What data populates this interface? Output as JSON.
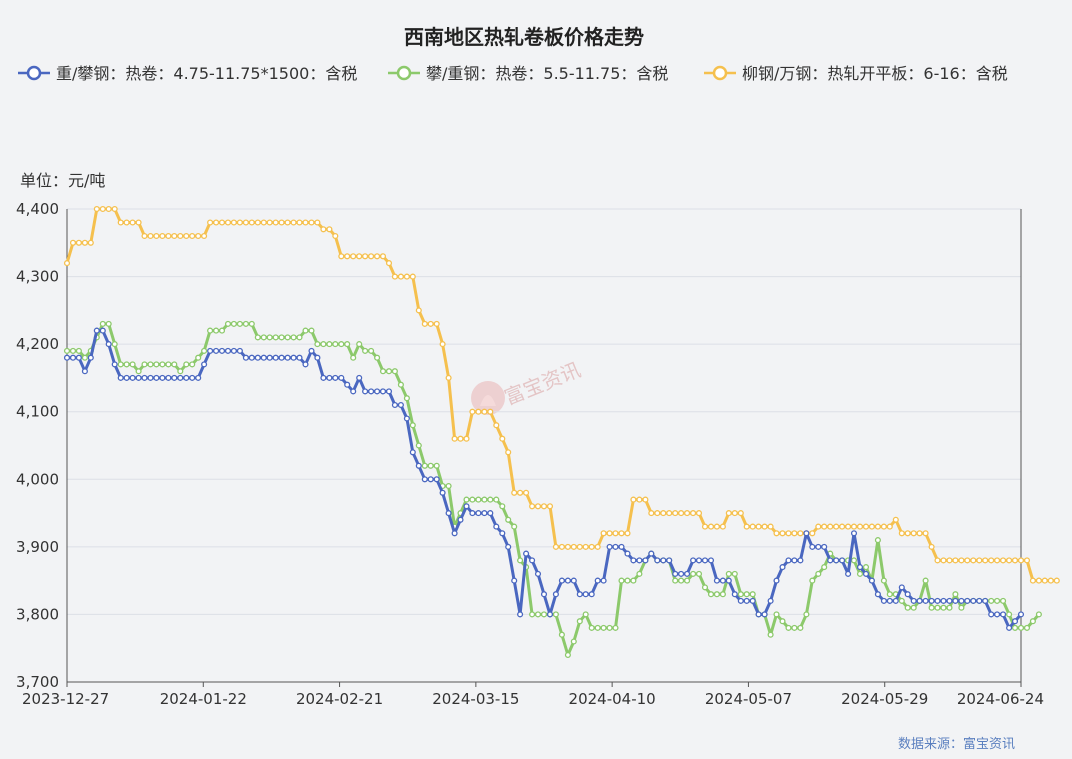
{
  "chart_data": {
    "type": "line",
    "title": "西南地区热轧卷板价格走势",
    "unit_label": "单位：元/吨",
    "source": "数据来源：富宝资讯",
    "watermark": "富宝资讯",
    "ylim": [
      3700,
      4400
    ],
    "yticks": [
      "4,400",
      "4,300",
      "4,200",
      "4,100",
      "4,000",
      "3,900",
      "3,800",
      "3,700"
    ],
    "xticks": [
      "2023-12-27",
      "2024-01-22",
      "2024-02-21",
      "2024-03-15",
      "2024-04-10",
      "2024-05-07",
      "2024-05-29",
      "2024-06-24"
    ],
    "grid": true,
    "legend_position": "top",
    "series": [
      {
        "name": "重/攀钢：热卷：4.75-11.75*1500：含税",
        "color": "#4a67c0",
        "values": [
          4180,
          4180,
          4180,
          4160,
          4180,
          4220,
          4220,
          4200,
          4170,
          4150,
          4150,
          4150,
          4150,
          4150,
          4150,
          4150,
          4150,
          4150,
          4150,
          4150,
          4150,
          4150,
          4150,
          4170,
          4190,
          4190,
          4190,
          4190,
          4190,
          4190,
          4180,
          4180,
          4180,
          4180,
          4180,
          4180,
          4180,
          4180,
          4180,
          4180,
          4170,
          4190,
          4180,
          4150,
          4150,
          4150,
          4150,
          4140,
          4130,
          4150,
          4130,
          4130,
          4130,
          4130,
          4130,
          4110,
          4110,
          4090,
          4040,
          4020,
          4000,
          4000,
          4000,
          3980,
          3950,
          3920,
          3940,
          3960,
          3950,
          3950,
          3950,
          3950,
          3930,
          3920,
          3900,
          3850,
          3800,
          3890,
          3880,
          3860,
          3830,
          3800,
          3830,
          3850,
          3850,
          3850,
          3830,
          3830,
          3830,
          3850,
          3850,
          3900,
          3900,
          3900,
          3890,
          3880,
          3880,
          3880,
          3890,
          3880,
          3880,
          3880,
          3860,
          3860,
          3860,
          3880,
          3880,
          3880,
          3880,
          3850,
          3850,
          3850,
          3830,
          3820,
          3820,
          3820,
          3800,
          3800,
          3820,
          3850,
          3870,
          3880,
          3880,
          3880,
          3920,
          3900,
          3900,
          3900,
          3880,
          3880,
          3880,
          3860,
          3920,
          3870,
          3860,
          3850,
          3830,
          3820,
          3820,
          3820,
          3840,
          3830,
          3820,
          3820,
          3820,
          3820,
          3820,
          3820,
          3820,
          3820,
          3820,
          3820,
          3820,
          3820,
          3820,
          3800,
          3800,
          3800,
          3780,
          3790,
          3800
        ]
      },
      {
        "name": "攀/重钢：热卷：5.5-11.75：含税",
        "color": "#8cc96b",
        "values": [
          4190,
          4190,
          4190,
          4180,
          4190,
          4210,
          4230,
          4230,
          4200,
          4170,
          4170,
          4170,
          4160,
          4170,
          4170,
          4170,
          4170,
          4170,
          4170,
          4160,
          4170,
          4170,
          4180,
          4190,
          4220,
          4220,
          4220,
          4230,
          4230,
          4230,
          4230,
          4230,
          4210,
          4210,
          4210,
          4210,
          4210,
          4210,
          4210,
          4210,
          4220,
          4220,
          4200,
          4200,
          4200,
          4200,
          4200,
          4200,
          4180,
          4200,
          4190,
          4190,
          4180,
          4160,
          4160,
          4160,
          4140,
          4120,
          4080,
          4050,
          4020,
          4020,
          4020,
          3990,
          3990,
          3930,
          3950,
          3970,
          3970,
          3970,
          3970,
          3970,
          3970,
          3960,
          3940,
          3930,
          3880,
          3870,
          3800,
          3800,
          3800,
          3800,
          3800,
          3770,
          3740,
          3760,
          3790,
          3800,
          3780,
          3780,
          3780,
          3780,
          3780,
          3850,
          3850,
          3850,
          3860,
          3880,
          3890,
          3880,
          3880,
          3880,
          3850,
          3850,
          3850,
          3860,
          3860,
          3840,
          3830,
          3830,
          3830,
          3860,
          3860,
          3830,
          3830,
          3830,
          3800,
          3800,
          3770,
          3800,
          3790,
          3780,
          3780,
          3780,
          3800,
          3850,
          3860,
          3870,
          3890,
          3880,
          3880,
          3880,
          3880,
          3860,
          3870,
          3850,
          3910,
          3850,
          3830,
          3830,
          3820,
          3810,
          3810,
          3820,
          3850,
          3810,
          3810,
          3810,
          3810,
          3830,
          3810,
          3820,
          3820,
          3820,
          3820,
          3820,
          3820,
          3820,
          3800,
          3780,
          3780,
          3780,
          3790,
          3800
        ]
      },
      {
        "name": "柳钢/万钢：热轧开平板：6-16：含税",
        "color": "#f5c04e",
        "values": [
          4320,
          4350,
          4350,
          4350,
          4350,
          4400,
          4400,
          4400,
          4400,
          4380,
          4380,
          4380,
          4380,
          4360,
          4360,
          4360,
          4360,
          4360,
          4360,
          4360,
          4360,
          4360,
          4360,
          4360,
          4380,
          4380,
          4380,
          4380,
          4380,
          4380,
          4380,
          4380,
          4380,
          4380,
          4380,
          4380,
          4380,
          4380,
          4380,
          4380,
          4380,
          4380,
          4380,
          4370,
          4370,
          4360,
          4330,
          4330,
          4330,
          4330,
          4330,
          4330,
          4330,
          4330,
          4320,
          4300,
          4300,
          4300,
          4300,
          4250,
          4230,
          4230,
          4230,
          4200,
          4150,
          4060,
          4060,
          4060,
          4100,
          4100,
          4100,
          4100,
          4080,
          4060,
          4040,
          3980,
          3980,
          3980,
          3960,
          3960,
          3960,
          3960,
          3900,
          3900,
          3900,
          3900,
          3900,
          3900,
          3900,
          3900,
          3920,
          3920,
          3920,
          3920,
          3920,
          3970,
          3970,
          3970,
          3950,
          3950,
          3950,
          3950,
          3950,
          3950,
          3950,
          3950,
          3950,
          3930,
          3930,
          3930,
          3930,
          3950,
          3950,
          3950,
          3930,
          3930,
          3930,
          3930,
          3930,
          3920,
          3920,
          3920,
          3920,
          3920,
          3920,
          3920,
          3930,
          3930,
          3930,
          3930,
          3930,
          3930,
          3930,
          3930,
          3930,
          3930,
          3930,
          3930,
          3930,
          3940,
          3920,
          3920,
          3920,
          3920,
          3920,
          3900,
          3880,
          3880,
          3880,
          3880,
          3880,
          3880,
          3880,
          3880,
          3880,
          3880,
          3880,
          3880,
          3880,
          3880,
          3880,
          3880,
          3850,
          3850,
          3850,
          3850,
          3850
        ]
      }
    ]
  }
}
